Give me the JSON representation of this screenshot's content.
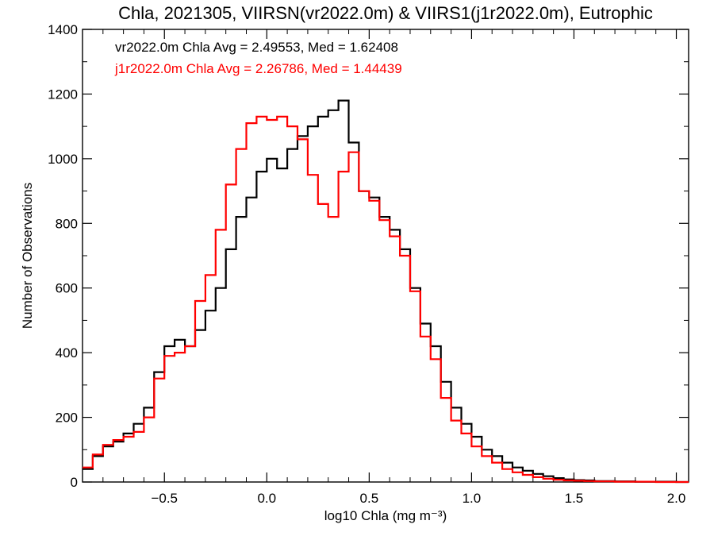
{
  "chart_data": {
    "type": "line",
    "title": "Chla, 2021305, VIIRSN(vr2022.0m) & VIIRS1(j1r2022.0m), Eutrophic",
    "xlabel": "log10 Chla (mg m⁻³)",
    "ylabel": "Number of Observations",
    "xlim": [
      -0.9,
      2.06
    ],
    "ylim": [
      0,
      1400
    ],
    "x_ticks": [
      -0.5,
      0.0,
      0.5,
      1.0,
      1.5,
      2.0
    ],
    "x_tick_labels": [
      "−0.5",
      "0.0",
      "0.5",
      "1.0",
      "1.5",
      "2.0"
    ],
    "y_ticks": [
      0,
      200,
      400,
      600,
      800,
      1000,
      1200,
      1400
    ],
    "y_tick_labels": [
      "0",
      "200",
      "400",
      "600",
      "800",
      "1000",
      "1200",
      "1400"
    ],
    "grid": false,
    "series": [
      {
        "annotation": "vr2022.0m Chla Avg = 2.49553, Med = 1.62408",
        "color": "#000000",
        "x": [
          -0.9,
          -0.85,
          -0.8,
          -0.75,
          -0.7,
          -0.65,
          -0.6,
          -0.55,
          -0.5,
          -0.45,
          -0.4,
          -0.35,
          -0.3,
          -0.25,
          -0.2,
          -0.15,
          -0.1,
          -0.05,
          0.0,
          0.05,
          0.1,
          0.15,
          0.2,
          0.25,
          0.3,
          0.35,
          0.4,
          0.45,
          0.5,
          0.55,
          0.6,
          0.65,
          0.7,
          0.75,
          0.8,
          0.85,
          0.9,
          0.95,
          1.0,
          1.05,
          1.1,
          1.15,
          1.2,
          1.25,
          1.3,
          1.35,
          1.4,
          1.45,
          1.5,
          1.55,
          1.6,
          1.7,
          1.8,
          1.9,
          2.0,
          2.06
        ],
        "y": [
          40,
          80,
          110,
          125,
          150,
          180,
          230,
          340,
          420,
          440,
          420,
          470,
          530,
          600,
          720,
          820,
          880,
          960,
          1000,
          970,
          1030,
          1070,
          1100,
          1130,
          1150,
          1180,
          1050,
          900,
          880,
          820,
          780,
          720,
          600,
          490,
          420,
          310,
          230,
          180,
          140,
          100,
          80,
          60,
          45,
          35,
          25,
          18,
          12,
          8,
          6,
          5,
          3,
          2,
          1,
          1,
          0,
          0
        ]
      },
      {
        "annotation": "j1r2022.0m Chla Avg = 2.26786, Med = 1.44439",
        "color": "#ff0000",
        "x": [
          -0.9,
          -0.85,
          -0.8,
          -0.75,
          -0.7,
          -0.65,
          -0.6,
          -0.55,
          -0.5,
          -0.45,
          -0.4,
          -0.35,
          -0.3,
          -0.25,
          -0.2,
          -0.15,
          -0.1,
          -0.05,
          0.0,
          0.05,
          0.1,
          0.15,
          0.2,
          0.25,
          0.3,
          0.35,
          0.4,
          0.45,
          0.5,
          0.55,
          0.6,
          0.65,
          0.7,
          0.75,
          0.8,
          0.85,
          0.9,
          0.95,
          1.0,
          1.05,
          1.1,
          1.15,
          1.2,
          1.25,
          1.3,
          1.35,
          1.4,
          1.45,
          1.5,
          1.55,
          1.6,
          1.7,
          1.8,
          1.9,
          2.0,
          2.06
        ],
        "y": [
          45,
          85,
          115,
          130,
          140,
          155,
          200,
          320,
          390,
          400,
          420,
          560,
          640,
          780,
          920,
          1030,
          1110,
          1130,
          1120,
          1130,
          1100,
          1060,
          950,
          860,
          820,
          960,
          1020,
          900,
          870,
          810,
          760,
          700,
          590,
          450,
          380,
          260,
          190,
          150,
          110,
          80,
          60,
          40,
          30,
          22,
          15,
          10,
          7,
          5,
          4,
          3,
          2,
          1,
          1,
          0,
          0,
          0
        ]
      }
    ]
  }
}
